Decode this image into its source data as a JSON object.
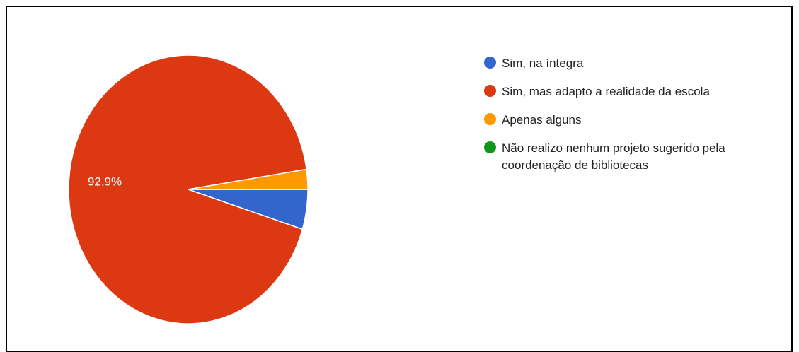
{
  "chart_data": {
    "type": "pie",
    "categories": [
      "Sim, na íntegra",
      "Sim, mas adapto a realidade da escola",
      "Apenas alguns",
      "Não realizo nenhum projeto sugerido pela coordenação de bibliotecas"
    ],
    "values": [
      4.8,
      92.9,
      2.4,
      0
    ],
    "value_labels": [
      null,
      "92,9%",
      null,
      null
    ],
    "colors": [
      "#3366cc",
      "#dc3912",
      "#ff9900",
      "#109618"
    ],
    "legend": "right"
  }
}
